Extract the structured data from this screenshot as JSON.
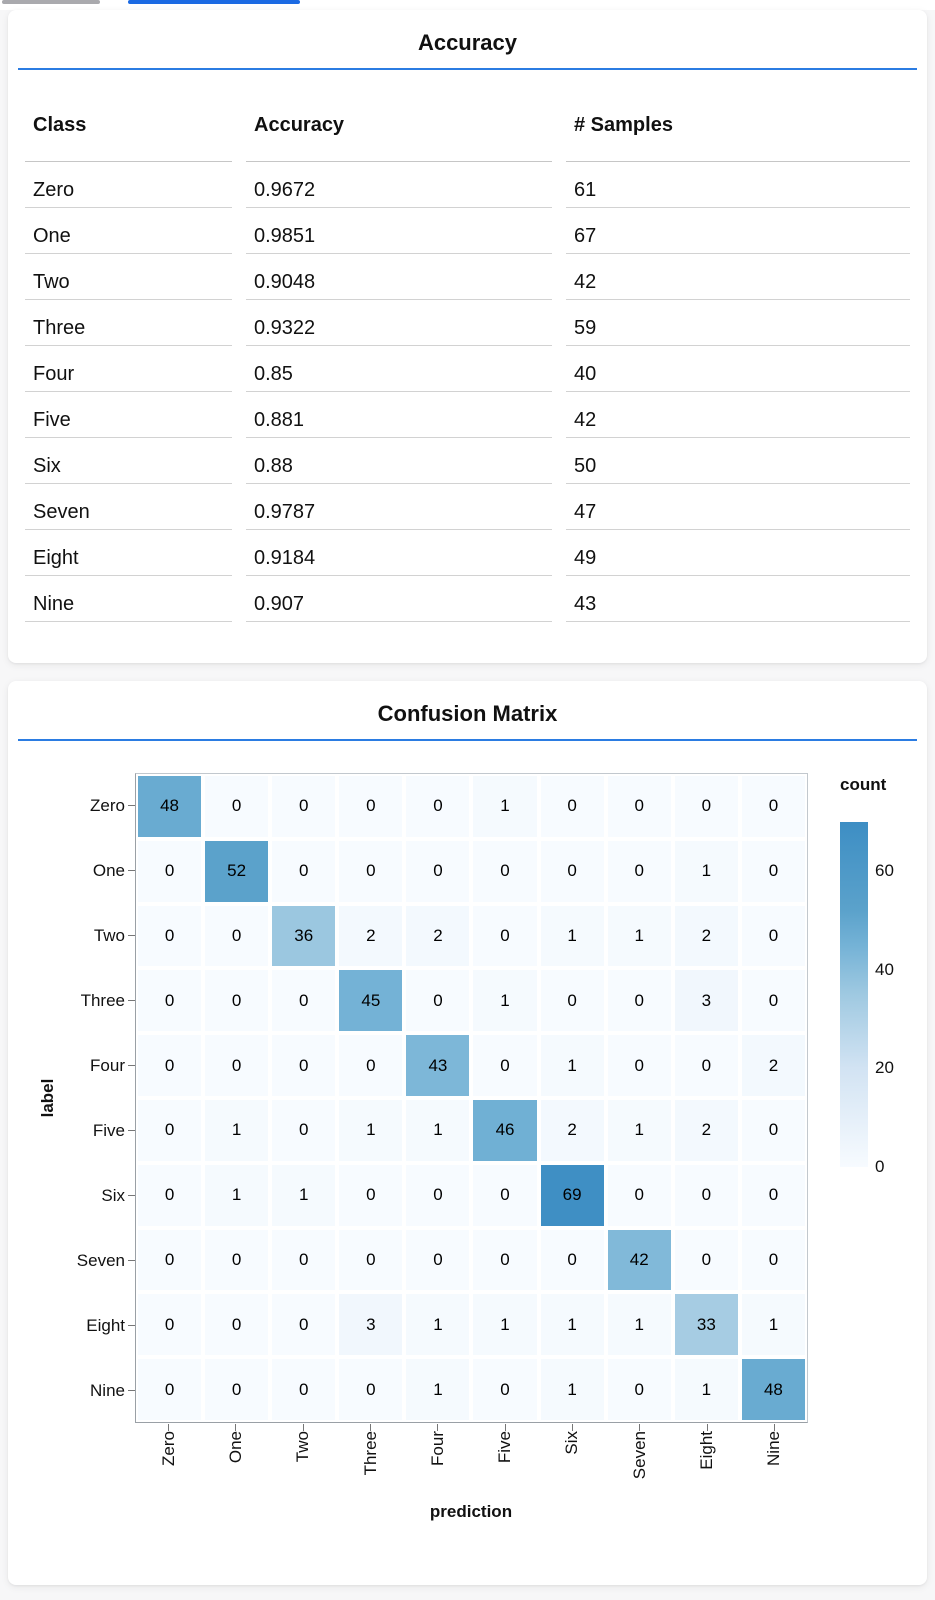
{
  "tabs": {
    "note": "partial tab indicators at top of viewport"
  },
  "colors": {
    "accent_rule": "#2b7ce2",
    "active_tab": "#1b6ae3",
    "inactive_tab": "#a9a9ad",
    "heat_low": "#f7fbff",
    "heat_high": "#3d8ec4"
  },
  "chart_data": [
    {
      "type": "table",
      "title": "Accuracy",
      "columns": [
        "Class",
        "Accuracy",
        "# Samples"
      ],
      "rows": [
        [
          "Zero",
          "0.9672",
          "61"
        ],
        [
          "One",
          "0.9851",
          "67"
        ],
        [
          "Two",
          "0.9048",
          "42"
        ],
        [
          "Three",
          "0.9322",
          "59"
        ],
        [
          "Four",
          "0.85",
          "40"
        ],
        [
          "Five",
          "0.881",
          "42"
        ],
        [
          "Six",
          "0.88",
          "50"
        ],
        [
          "Seven",
          "0.9787",
          "47"
        ],
        [
          "Eight",
          "0.9184",
          "49"
        ],
        [
          "Nine",
          "0.907",
          "43"
        ]
      ]
    },
    {
      "type": "heatmap",
      "title": "Confusion Matrix",
      "xlabel": "prediction",
      "ylabel": "label",
      "x_categories": [
        "Zero",
        "One",
        "Two",
        "Three",
        "Four",
        "Five",
        "Six",
        "Seven",
        "Eight",
        "Nine"
      ],
      "y_categories": [
        "Zero",
        "One",
        "Two",
        "Three",
        "Four",
        "Five",
        "Six",
        "Seven",
        "Eight",
        "Nine"
      ],
      "values": [
        [
          48,
          0,
          0,
          0,
          0,
          1,
          0,
          0,
          0,
          0
        ],
        [
          0,
          52,
          0,
          0,
          0,
          0,
          0,
          0,
          1,
          0
        ],
        [
          0,
          0,
          36,
          2,
          2,
          0,
          1,
          1,
          2,
          0
        ],
        [
          0,
          0,
          0,
          45,
          0,
          1,
          0,
          0,
          3,
          0
        ],
        [
          0,
          0,
          0,
          0,
          43,
          0,
          1,
          0,
          0,
          2
        ],
        [
          0,
          1,
          0,
          1,
          1,
          46,
          2,
          1,
          2,
          0
        ],
        [
          0,
          1,
          1,
          0,
          0,
          0,
          69,
          0,
          0,
          0
        ],
        [
          0,
          0,
          0,
          0,
          0,
          0,
          0,
          42,
          0,
          0
        ],
        [
          0,
          0,
          0,
          3,
          1,
          1,
          1,
          1,
          33,
          1
        ],
        [
          0,
          0,
          0,
          0,
          1,
          0,
          1,
          0,
          1,
          48
        ]
      ],
      "legend_title": "count",
      "legend_ticks": [
        60,
        40,
        20,
        0
      ],
      "legend_position": "right",
      "color_domain": [
        0,
        70
      ],
      "color_range": [
        "#f7fbff",
        "#3d8ec4"
      ],
      "grid": false
    }
  ]
}
